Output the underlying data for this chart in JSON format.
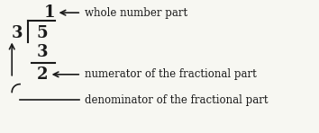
{
  "bg_color": "#f7f7f2",
  "text_color": "#1a1a1a",
  "divisor": "3",
  "dividend": "5",
  "quotient": "1",
  "subtrahend": "3",
  "remainder": "2",
  "label_whole": "whole number part",
  "label_numerator": "numerator of the fractional part",
  "label_denominator": "denominator of the fractional part",
  "font_size_main": 13,
  "font_size_label": 8.5
}
